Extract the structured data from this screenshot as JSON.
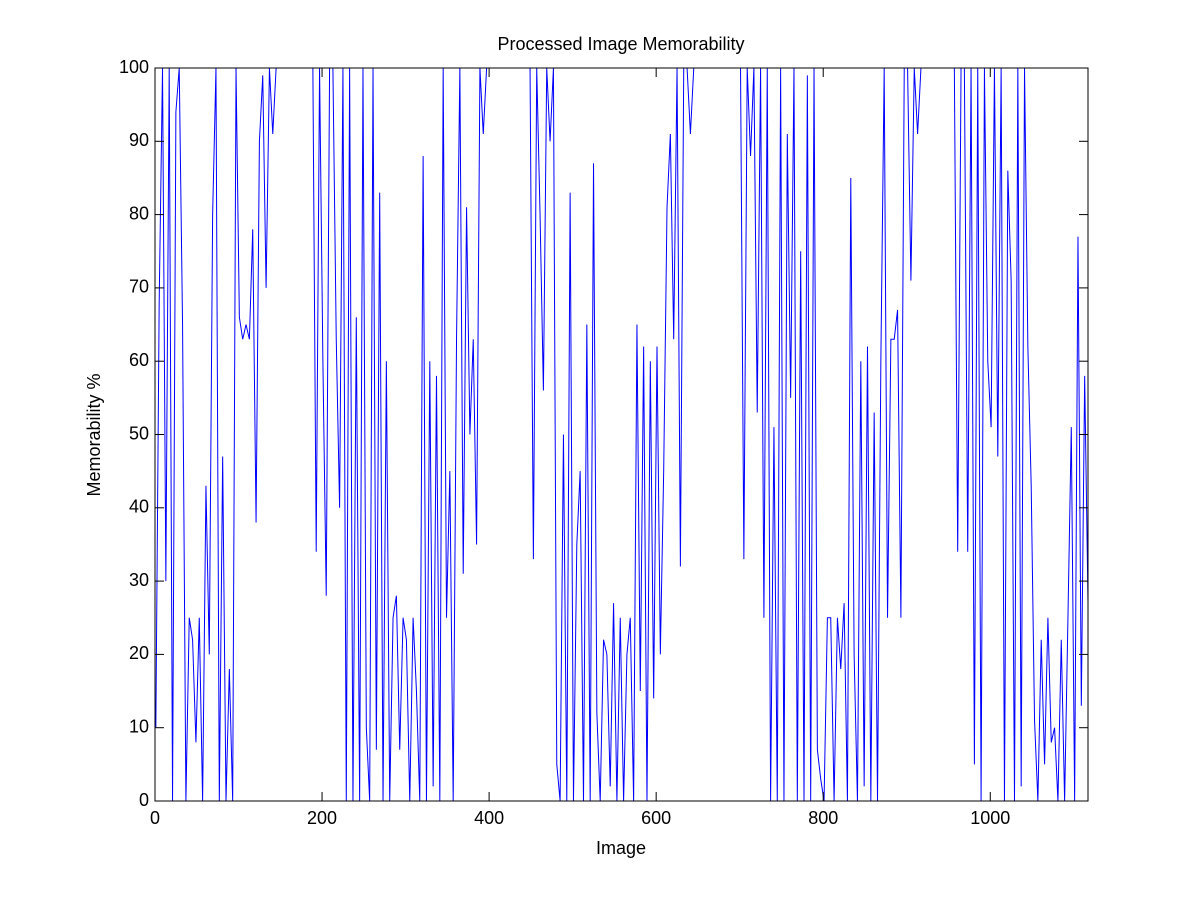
{
  "chart_data": {
    "type": "line",
    "title": "Processed Image Memorability",
    "x_label": "Image",
    "y_label": "Memorability %",
    "color": "#0000ff",
    "x": [
      1,
      5,
      9,
      13,
      17,
      21,
      25,
      29,
      33,
      37,
      41,
      45,
      49,
      53,
      57,
      61,
      65,
      69,
      73,
      77,
      81,
      85,
      89,
      93,
      97,
      101,
      105,
      109,
      113,
      117,
      121,
      125,
      129,
      133,
      137,
      141,
      145,
      149,
      153,
      157,
      161,
      165,
      169,
      173,
      177,
      181,
      185,
      189,
      193,
      197,
      201,
      205,
      209,
      213,
      217,
      221,
      225,
      229,
      233,
      237,
      241,
      245,
      249,
      253,
      257,
      261,
      265,
      269,
      273,
      277,
      281,
      285,
      289,
      293,
      297,
      301,
      305,
      309,
      313,
      317,
      321,
      325,
      329,
      333,
      337,
      341,
      345,
      349,
      353,
      357,
      361,
      365,
      369,
      373,
      377,
      381,
      385,
      389,
      393,
      397,
      401,
      405,
      409,
      413,
      417,
      421,
      425,
      429,
      433,
      437,
      441,
      445,
      449,
      453,
      457,
      461,
      465,
      469,
      473,
      477,
      481,
      485,
      489,
      493,
      497,
      501,
      505,
      509,
      513,
      517,
      521,
      525,
      529,
      533,
      537,
      541,
      545,
      549,
      553,
      557,
      561,
      565,
      569,
      573,
      577,
      581,
      585,
      589,
      593,
      597,
      601,
      605,
      609,
      613,
      617,
      621,
      625,
      629,
      633,
      637,
      641,
      645,
      649,
      653,
      657,
      661,
      665,
      669,
      673,
      677,
      681,
      685,
      689,
      693,
      697,
      701,
      705,
      709,
      713,
      717,
      721,
      725,
      729,
      733,
      737,
      741,
      745,
      749,
      753,
      757,
      761,
      765,
      769,
      773,
      777,
      781,
      785,
      789,
      793,
      797,
      801,
      805,
      809,
      813,
      817,
      821,
      825,
      829,
      833,
      837,
      841,
      845,
      849,
      853,
      857,
      861,
      865,
      869,
      873,
      877,
      881,
      885,
      889,
      893,
      897,
      901,
      905,
      909,
      913,
      917,
      921,
      925,
      929,
      933,
      937,
      941,
      945,
      949,
      953,
      957,
      961,
      965,
      969,
      973,
      977,
      981,
      985,
      989,
      993,
      997,
      1001,
      1005,
      1009,
      1013,
      1017,
      1021,
      1025,
      1029,
      1033,
      1037,
      1041,
      1045,
      1049,
      1053,
      1057,
      1061,
      1065,
      1069,
      1073,
      1077,
      1081,
      1085,
      1089,
      1093,
      1097,
      1101,
      1105,
      1109,
      1113,
      1117
    ],
    "values": [
      10,
      68,
      100,
      30,
      100,
      0,
      94,
      100,
      65,
      0,
      25,
      22,
      8,
      25,
      0,
      43,
      20,
      80,
      100,
      0,
      47,
      0,
      18,
      0,
      100,
      66,
      63,
      65,
      63,
      78,
      38,
      90,
      99,
      70,
      100,
      91,
      100,
      100,
      100,
      100,
      100,
      100,
      100,
      100,
      100,
      100,
      100,
      100,
      34,
      100,
      60,
      28,
      100,
      100,
      63,
      40,
      100,
      0,
      100,
      0,
      66,
      0,
      100,
      10,
      0,
      100,
      7,
      83,
      0,
      60,
      0,
      25,
      28,
      7,
      25,
      22,
      0,
      25,
      15,
      0,
      88,
      0,
      60,
      2,
      58,
      0,
      100,
      25,
      45,
      0,
      63,
      100,
      31,
      81,
      50,
      63,
      35,
      100,
      91,
      100,
      100,
      100,
      100,
      100,
      100,
      100,
      100,
      100,
      100,
      100,
      100,
      100,
      100,
      33,
      100,
      80,
      56,
      100,
      90,
      100,
      5,
      0,
      50,
      0,
      83,
      0,
      35,
      45,
      0,
      65,
      0,
      87,
      12,
      0,
      22,
      20,
      2,
      27,
      0,
      25,
      0,
      20,
      25,
      0,
      65,
      15,
      62,
      0,
      60,
      14,
      62,
      20,
      45,
      81,
      91,
      63,
      100,
      32,
      100,
      100,
      91,
      100,
      100,
      100,
      100,
      100,
      100,
      100,
      100,
      100,
      100,
      100,
      100,
      100,
      100,
      100,
      33,
      100,
      88,
      100,
      53,
      100,
      25,
      100,
      0,
      51,
      0,
      100,
      0,
      91,
      55,
      100,
      0,
      75,
      0,
      99,
      0,
      100,
      7,
      3,
      0,
      25,
      25,
      0,
      25,
      18,
      27,
      0,
      85,
      20,
      0,
      60,
      2,
      62,
      0,
      53,
      0,
      60,
      100,
      25,
      63,
      63,
      67,
      25,
      100,
      100,
      71,
      100,
      91,
      100,
      100,
      100,
      100,
      100,
      100,
      100,
      100,
      100,
      100,
      100,
      34,
      100,
      100,
      34,
      100,
      5,
      100,
      0,
      100,
      60,
      51,
      100,
      47,
      100,
      0,
      86,
      71,
      0,
      100,
      2,
      100,
      62,
      43,
      11,
      0,
      22,
      5,
      25,
      8,
      10,
      0,
      22,
      0,
      25,
      51,
      0,
      77,
      13,
      58,
      27
    ],
    "xlim": [
      0,
      1117
    ],
    "xticks": [
      0,
      200,
      400,
      600,
      800,
      1000
    ],
    "ylim": [
      0,
      100
    ],
    "yticks": [
      0,
      10,
      20,
      30,
      40,
      50,
      60,
      70,
      80,
      90,
      100
    ]
  }
}
